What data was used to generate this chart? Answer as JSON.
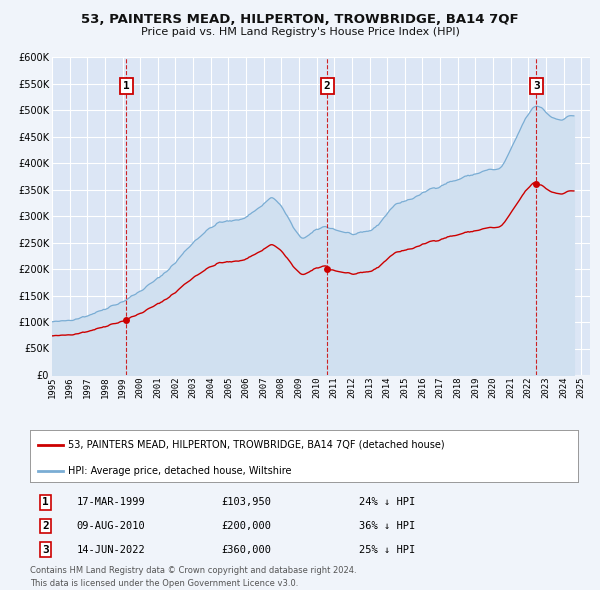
{
  "title": "53, PAINTERS MEAD, HILPERTON, TROWBRIDGE, BA14 7QF",
  "subtitle": "Price paid vs. HM Land Registry's House Price Index (HPI)",
  "bg_color": "#f0f4fa",
  "plot_bg_color": "#dce6f5",
  "grid_color": "#ffffff",
  "ylim": [
    0,
    600000
  ],
  "yticks": [
    0,
    50000,
    100000,
    150000,
    200000,
    250000,
    300000,
    350000,
    400000,
    450000,
    500000,
    550000,
    600000
  ],
  "sale_dates": [
    1999.205,
    2010.603,
    2022.452
  ],
  "sale_prices": [
    103950,
    200000,
    360000
  ],
  "sale_labels": [
    "1",
    "2",
    "3"
  ],
  "vline_color": "#cc0000",
  "sale_dot_color": "#cc0000",
  "legend_sale_label": "53, PAINTERS MEAD, HILPERTON, TROWBRIDGE, BA14 7QF (detached house)",
  "legend_hpi_label": "HPI: Average price, detached house, Wiltshire",
  "sale_line_color": "#cc0000",
  "hpi_line_color": "#7aadd4",
  "hpi_fill_color": "#d0e0f0",
  "table_rows": [
    [
      "1",
      "17-MAR-1999",
      "£103,950",
      "24% ↓ HPI"
    ],
    [
      "2",
      "09-AUG-2010",
      "£200,000",
      "36% ↓ HPI"
    ],
    [
      "3",
      "14-JUN-2022",
      "£360,000",
      "25% ↓ HPI"
    ]
  ],
  "footnote1": "Contains HM Land Registry data © Crown copyright and database right 2024.",
  "footnote2": "This data is licensed under the Open Government Licence v3.0.",
  "xmin": 1995.0,
  "xmax": 2025.5
}
